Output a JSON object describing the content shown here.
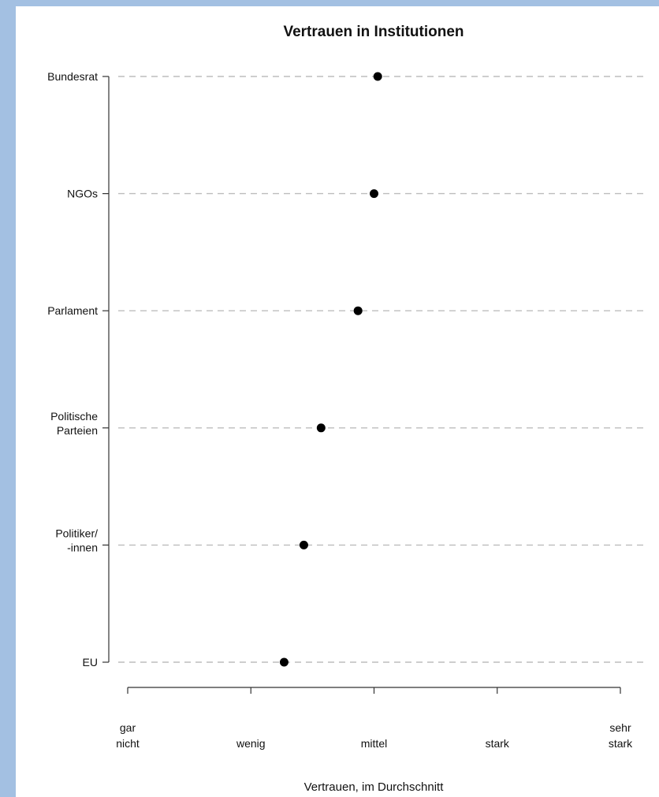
{
  "chart_data": {
    "type": "scatter",
    "title": "Vertrauen in Institutionen",
    "xlabel": "Vertrauen, im Durchschnitt",
    "ylabel": "",
    "xlim": [
      1,
      5
    ],
    "x_ticks": [
      {
        "value": 1,
        "label": [
          "gar",
          "nicht"
        ]
      },
      {
        "value": 2,
        "label": [
          "wenig"
        ]
      },
      {
        "value": 3,
        "label": [
          "mittel"
        ]
      },
      {
        "value": 4,
        "label": [
          "stark"
        ]
      },
      {
        "value": 5,
        "label": [
          "sehr",
          "stark"
        ]
      }
    ],
    "categories": [
      {
        "label": [
          "Bundesrat"
        ],
        "value": 3.03
      },
      {
        "label": [
          "NGOs"
        ],
        "value": 3.0
      },
      {
        "label": [
          "Parlament"
        ],
        "value": 2.87
      },
      {
        "label": [
          "Politische",
          "Parteien"
        ],
        "value": 2.57
      },
      {
        "label": [
          "Politiker/",
          "-innen"
        ],
        "value": 2.43
      },
      {
        "label": [
          "EU"
        ],
        "value": 2.27
      }
    ],
    "grid": "dashed horizontal",
    "colors": {
      "points": "#000000",
      "grid": "#bdbdbd",
      "axis": "#333333"
    }
  }
}
